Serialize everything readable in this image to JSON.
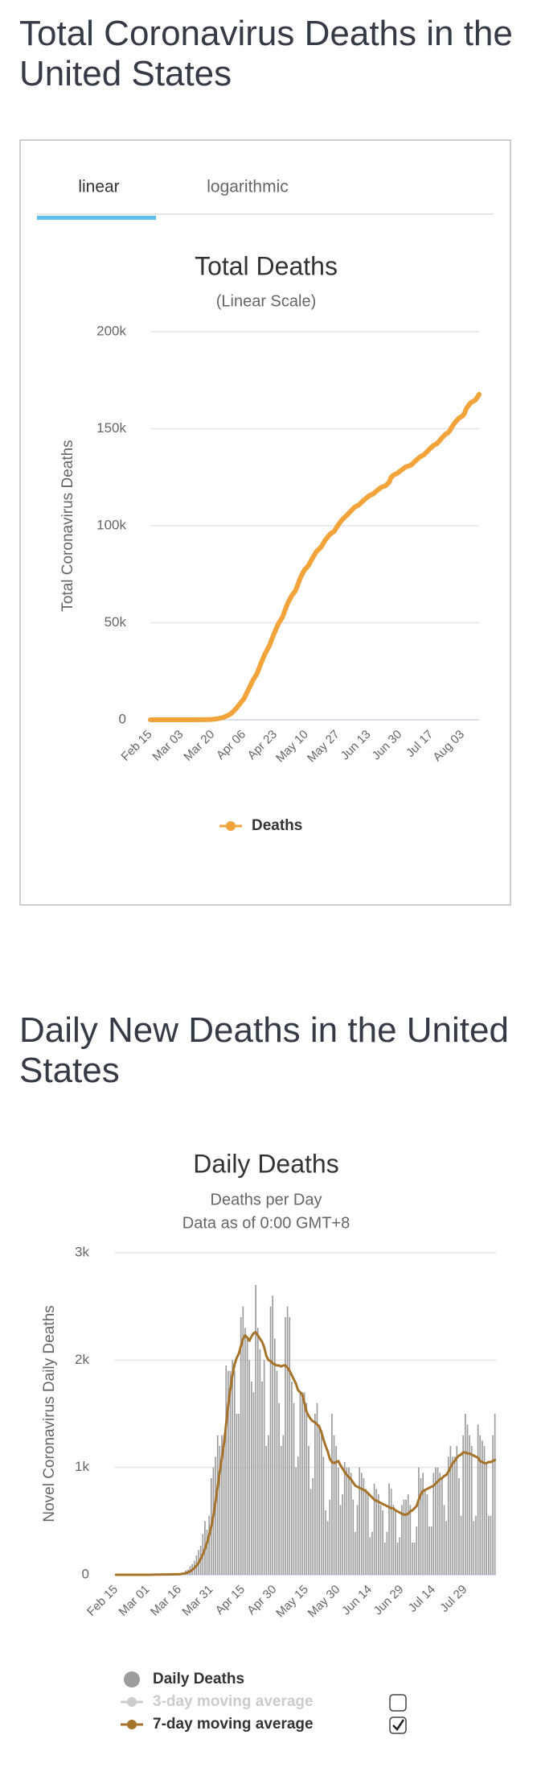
{
  "headings": [
    "Total Coronavirus Deaths in the United States",
    "Daily New Deaths in the United States"
  ],
  "tabs": [
    "linear",
    "logarithmic"
  ],
  "chart_data": [
    {
      "type": "line",
      "title": "Total Deaths",
      "subtitle": "(Linear Scale)",
      "y_label": "Total Coronavirus Deaths",
      "grid": true,
      "legend": "bottom",
      "categories": [
        "Feb 15",
        null,
        null,
        null,
        null,
        null,
        null,
        null,
        null,
        null,
        null,
        null,
        null,
        null,
        null,
        null,
        null,
        "Mar 03",
        null,
        null,
        null,
        null,
        null,
        null,
        null,
        null,
        null,
        null,
        null,
        null,
        null,
        null,
        null,
        null,
        "Mar 20",
        null,
        null,
        null,
        null,
        null,
        null,
        null,
        null,
        null,
        null,
        null,
        null,
        null,
        null,
        null,
        null,
        "Apr 06",
        null,
        null,
        null,
        null,
        null,
        null,
        null,
        null,
        null,
        null,
        null,
        null,
        null,
        null,
        null,
        null,
        "Apr 23",
        null,
        null,
        null,
        null,
        null,
        null,
        null,
        null,
        null,
        null,
        null,
        null,
        null,
        null,
        null,
        null,
        "May 10",
        null,
        null,
        null,
        null,
        null,
        null,
        null,
        null,
        null,
        null,
        null,
        null,
        null,
        null,
        null,
        null,
        "May 27",
        null,
        null,
        null,
        null,
        null,
        null,
        null,
        null,
        null,
        null,
        null,
        null,
        null,
        null,
        null,
        null,
        "Jun 13",
        null,
        null,
        null,
        null,
        null,
        null,
        null,
        null,
        null,
        null,
        null,
        null,
        null,
        null,
        null,
        null,
        "Jun 30",
        null,
        null,
        null,
        null,
        null,
        null,
        null,
        null,
        null,
        null,
        null,
        null,
        null,
        null,
        null,
        null,
        "Jul 17",
        null,
        null,
        null,
        null,
        null,
        null,
        null,
        null,
        null,
        null,
        null,
        null,
        null,
        null,
        null,
        null,
        "Aug 03",
        null,
        null,
        null,
        null,
        null,
        null,
        null,
        null,
        null
      ],
      "series": [
        {
          "name": "Deaths",
          "color": "#f2a33a",
          "values": [
            0,
            0,
            0,
            0,
            0,
            0,
            0,
            0,
            0,
            0,
            0,
            0,
            0,
            0,
            1,
            1,
            2,
            6,
            9,
            11,
            12,
            15,
            19,
            22,
            26,
            31,
            38,
            41,
            49,
            57,
            68,
            86,
            109,
            150,
            260,
            340,
            470,
            600,
            780,
            1000,
            1300,
            1700,
            2200,
            2600,
            3200,
            4100,
            5100,
            6100,
            7400,
            8500,
            9700,
            10900,
            12900,
            14800,
            16700,
            18700,
            20600,
            22100,
            23600,
            26000,
            28500,
            30800,
            33000,
            35000,
            36800,
            38500,
            41200,
            43500,
            45800,
            48000,
            50000,
            51400,
            53000,
            55600,
            58100,
            60400,
            62200,
            64000,
            65200,
            66500,
            68900,
            71400,
            73800,
            75600,
            77300,
            78300,
            79400,
            81100,
            82800,
            84500,
            86100,
            87300,
            88100,
            89100,
            90600,
            92300,
            93500,
            94700,
            95800,
            96400,
            97000,
            98500,
            100000,
            101300,
            102600,
            103600,
            104600,
            105400,
            106400,
            107400,
            108400,
            109300,
            110000,
            110400,
            111100,
            112100,
            113000,
            113800,
            114600,
            115400,
            115800,
            116200,
            117000,
            117800,
            118500,
            119300,
            119900,
            120200,
            120600,
            121500,
            122300,
            124800,
            125800,
            126400,
            126800,
            127500,
            128200,
            128900,
            129600,
            130300,
            130600,
            130900,
            131300,
            132200,
            133100,
            134000,
            134800,
            135600,
            136100,
            136600,
            137600,
            138500,
            139500,
            140400,
            141300,
            141800,
            142300,
            143300,
            144400,
            145500,
            146500,
            147400,
            147800,
            149000,
            150600,
            152100,
            153400,
            154400,
            155500,
            156000,
            156600,
            157900,
            160300,
            161600,
            162900,
            163800,
            164200,
            164800,
            166200,
            167700
          ]
        }
      ],
      "ylim": [
        0,
        200000
      ],
      "yticks": [
        0,
        {
          "value": 50000,
          "label": "50k"
        },
        {
          "value": 100000,
          "label": "100k"
        },
        {
          "value": 150000,
          "label": "150k"
        },
        {
          "value": 200000,
          "label": "200k"
        }
      ]
    },
    {
      "type": "combo",
      "title": "Daily Deaths",
      "subtitle": "Deaths per Day",
      "note": "Data as of 0:00 GMT+8",
      "y_label": "Novel Coronavirus Daily Deaths",
      "grid": true,
      "legend": "bottom",
      "categories": [
        "Feb 15",
        null,
        null,
        null,
        null,
        null,
        null,
        null,
        null,
        null,
        null,
        null,
        null,
        null,
        null,
        "Mar 01",
        null,
        null,
        null,
        null,
        null,
        null,
        null,
        null,
        null,
        null,
        null,
        null,
        null,
        null,
        "Mar 16",
        null,
        null,
        null,
        null,
        null,
        null,
        null,
        null,
        null,
        null,
        null,
        null,
        null,
        null,
        "Mar 31",
        null,
        null,
        null,
        null,
        null,
        null,
        null,
        null,
        null,
        null,
        null,
        null,
        null,
        null,
        "Apr 15",
        null,
        null,
        null,
        null,
        null,
        null,
        null,
        null,
        null,
        null,
        null,
        null,
        null,
        null,
        "Apr 30",
        null,
        null,
        null,
        null,
        null,
        null,
        null,
        null,
        null,
        null,
        null,
        null,
        null,
        null,
        "May 15",
        null,
        null,
        null,
        null,
        null,
        null,
        null,
        null,
        null,
        null,
        null,
        null,
        null,
        null,
        "May 30",
        null,
        null,
        null,
        null,
        null,
        null,
        null,
        null,
        null,
        null,
        null,
        null,
        null,
        null,
        "Jun 14",
        null,
        null,
        null,
        null,
        null,
        null,
        null,
        null,
        null,
        null,
        null,
        null,
        null,
        null,
        "Jun 29",
        null,
        null,
        null,
        null,
        null,
        null,
        null,
        null,
        null,
        null,
        null,
        null,
        null,
        null,
        "Jul 14",
        null,
        null,
        null,
        null,
        null,
        null,
        null,
        null,
        null,
        null,
        null,
        null,
        null,
        null,
        "Jul 29",
        null,
        null,
        null,
        null,
        null,
        null,
        null,
        null,
        null,
        null,
        null,
        null,
        null,
        null
      ],
      "series": [
        {
          "name": "Daily Deaths",
          "type": "column",
          "color": "#9d9d9d",
          "values": [
            0,
            0,
            0,
            0,
            0,
            0,
            0,
            0,
            0,
            0,
            0,
            0,
            0,
            0,
            1,
            0,
            1,
            4,
            3,
            2,
            1,
            3,
            4,
            3,
            4,
            5,
            7,
            3,
            8,
            8,
            11,
            18,
            23,
            41,
            50,
            80,
            100,
            130,
            180,
            230,
            270,
            380,
            500,
            420,
            550,
            900,
            1000,
            1100,
            1300,
            1200,
            1300,
            1300,
            1950,
            1900,
            1900,
            2000,
            1900,
            1500,
            1500,
            2400,
            2500,
            2300,
            2200,
            2000,
            1800,
            1700,
            2700,
            2300,
            2100,
            1800,
            2000,
            1200,
            1300,
            2500,
            2600,
            2200,
            1900,
            1600,
            1200,
            1300,
            2400,
            2500,
            2400,
            1800,
            1600,
            1000,
            1100,
            1700,
            1700,
            1700,
            1600,
            1200,
            800,
            900,
            1500,
            1600,
            1400,
            1300,
            1100,
            600,
            500,
            700,
            1500,
            1300,
            1200,
            1000,
            650,
            750,
            1050,
            1000,
            1000,
            950,
            700,
            400,
            650,
            1000,
            950,
            900,
            800,
            750,
            350,
            400,
            850,
            800,
            750,
            650,
            600,
            300,
            400,
            850,
            800,
            650,
            600,
            300,
            350,
            650,
            700,
            700,
            750,
            650,
            300,
            300,
            450,
            1000,
            900,
            950,
            800,
            750,
            450,
            450,
            950,
            1000,
            1000,
            950,
            900,
            650,
            500,
            1100,
            1200,
            1100,
            1100,
            1200,
            900,
            550,
            1300,
            1500,
            1400,
            1300,
            1200,
            500,
            550,
            1400,
            1300,
            1250,
            1200,
            1050,
            550,
            550,
            1300,
            1500
          ]
        },
        {
          "name": "3-day moving average",
          "type": "line",
          "color": "#cccccc",
          "visible": false
        },
        {
          "name": "7-day moving average",
          "type": "line",
          "color": "#a6732b",
          "visible": true,
          "values": [
            0,
            0,
            0,
            0,
            0,
            0,
            0,
            0,
            0,
            0,
            0,
            0,
            0,
            0,
            0,
            0,
            0,
            1,
            1,
            2,
            2,
            2,
            3,
            3,
            3,
            3,
            4,
            4,
            5,
            5,
            6,
            8,
            11,
            16,
            22,
            32,
            46,
            63,
            84,
            112,
            148,
            190,
            240,
            300,
            370,
            450,
            550,
            680,
            820,
            960,
            1090,
            1220,
            1400,
            1580,
            1730,
            1860,
            1960,
            2020,
            2060,
            2130,
            2200,
            2230,
            2210,
            2180,
            2220,
            2250,
            2260,
            2230,
            2200,
            2170,
            2120,
            2040,
            2000,
            1990,
            1970,
            1960,
            1950,
            1950,
            1940,
            1950,
            1950,
            1930,
            1900,
            1860,
            1820,
            1780,
            1720,
            1700,
            1680,
            1600,
            1520,
            1480,
            1450,
            1430,
            1420,
            1400,
            1380,
            1330,
            1260,
            1200,
            1150,
            1080,
            1050,
            1040,
            1050,
            1060,
            1020,
            990,
            960,
            930,
            910,
            890,
            860,
            830,
            820,
            810,
            800,
            790,
            780,
            760,
            740,
            720,
            700,
            690,
            680,
            670,
            660,
            650,
            640,
            630,
            620,
            620,
            600,
            590,
            580,
            570,
            560,
            560,
            570,
            590,
            600,
            620,
            640,
            700,
            750,
            780,
            790,
            800,
            810,
            820,
            830,
            850,
            870,
            890,
            900,
            920,
            930,
            960,
            1000,
            1040,
            1060,
            1090,
            1110,
            1120,
            1140,
            1140,
            1130,
            1130,
            1120,
            1110,
            1100,
            1090,
            1060,
            1050,
            1040,
            1040,
            1050,
            1050,
            1060,
            1070
          ]
        }
      ],
      "ylim": [
        0,
        3000
      ],
      "yticks": [
        0,
        {
          "value": 1000,
          "label": "1k"
        },
        {
          "value": 2000,
          "label": "2k"
        },
        {
          "value": 3000,
          "label": "3k"
        }
      ]
    }
  ]
}
